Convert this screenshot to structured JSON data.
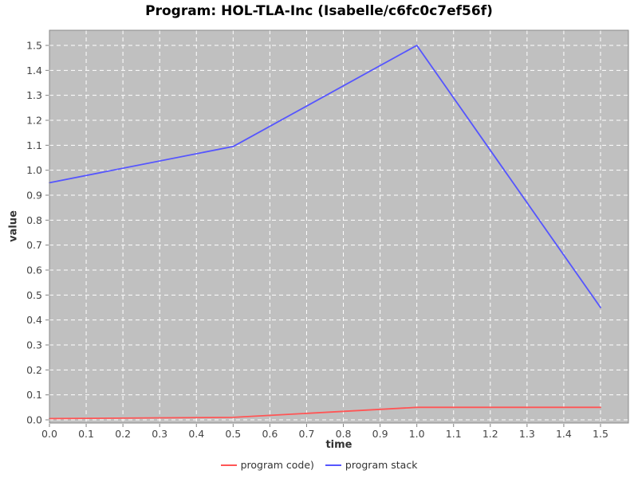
{
  "title": "Program: HOL-TLA-Inc (Isabelle/c6fc0c7ef56f)",
  "chart_data": {
    "type": "line",
    "title": "Program: HOL-TLA-Inc (Isabelle/c6fc0c7ef56f)",
    "xlabel": "time",
    "ylabel": "value",
    "xlim": [
      0.0,
      1.5
    ],
    "ylim": [
      0.0,
      1.5
    ],
    "x_tick_labels": [
      "0.0",
      "0.1",
      "0.2",
      "0.3",
      "0.4",
      "0.5",
      "0.6",
      "0.7",
      "0.8",
      "0.9",
      "1.0",
      "1.1",
      "1.2",
      "1.3",
      "1.4",
      "1.5"
    ],
    "y_tick_labels": [
      "0.0",
      "0.1",
      "0.2",
      "0.3",
      "0.4",
      "0.5",
      "0.6",
      "0.7",
      "0.8",
      "0.9",
      "1.0",
      "1.1",
      "1.2",
      "1.3",
      "1.4",
      "1.5"
    ],
    "grid": true,
    "legend_position": "bottom",
    "colors": {
      "plot_background": "#c0c0c0",
      "grid": "#ffffff",
      "frame": "#888888",
      "tick": "#808080",
      "tick_label": "#444444",
      "series_code": "#ff5555",
      "series_stack": "#5555ff"
    },
    "series": [
      {
        "name": "program code)",
        "color": "#ff5555",
        "x": [
          0.0,
          0.5,
          1.0,
          1.5
        ],
        "y": [
          0.005,
          0.01,
          0.05,
          0.05
        ]
      },
      {
        "name": "program stack",
        "color": "#5555ff",
        "x": [
          0.0,
          0.5,
          1.0,
          1.5
        ],
        "y": [
          0.95,
          1.095,
          1.5,
          0.45
        ]
      }
    ]
  }
}
